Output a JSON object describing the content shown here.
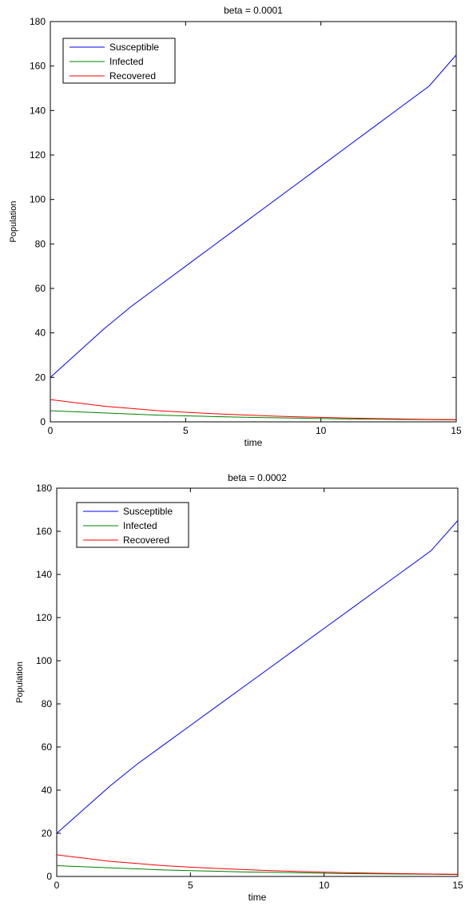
{
  "chart_data": [
    {
      "type": "line",
      "title": "beta = 0.0001",
      "xlabel": "time",
      "ylabel": "Population",
      "xlim": [
        0,
        15
      ],
      "ylim": [
        0,
        180
      ],
      "xticks": [
        0,
        5,
        10,
        15
      ],
      "yticks": [
        0,
        20,
        40,
        60,
        80,
        100,
        120,
        140,
        160,
        180
      ],
      "legend_position": "top-left",
      "grid": false,
      "x": [
        0,
        1,
        2,
        3,
        4,
        5,
        6,
        7,
        8,
        9,
        10,
        11,
        12,
        13,
        14,
        15
      ],
      "series": [
        {
          "name": "Susceptible",
          "color": "#0000ff",
          "values": [
            20,
            31,
            42,
            52,
            61,
            70,
            79,
            88,
            97,
            106,
            115,
            124,
            133,
            142,
            151,
            165
          ]
        },
        {
          "name": "Infected",
          "color": "#008000",
          "values": [
            5,
            4.5,
            4,
            3.5,
            3,
            2.7,
            2.4,
            2.1,
            1.9,
            1.7,
            1.5,
            1.3,
            1.2,
            1.1,
            1,
            0.9
          ]
        },
        {
          "name": "Recovered",
          "color": "#ff0000",
          "values": [
            10,
            8.5,
            7,
            6,
            5,
            4.3,
            3.7,
            3.2,
            2.7,
            2.3,
            2,
            1.7,
            1.5,
            1.3,
            1.1,
            1
          ]
        }
      ]
    },
    {
      "type": "line",
      "title": "beta = 0.0002",
      "xlabel": "time",
      "ylabel": "Population",
      "xlim": [
        0,
        15
      ],
      "ylim": [
        0,
        180
      ],
      "xticks": [
        0,
        5,
        10,
        15
      ],
      "yticks": [
        0,
        20,
        40,
        60,
        80,
        100,
        120,
        140,
        160,
        180
      ],
      "legend_position": "top-left",
      "grid": false,
      "x": [
        0,
        1,
        2,
        3,
        4,
        5,
        6,
        7,
        8,
        9,
        10,
        11,
        12,
        13,
        14,
        15
      ],
      "series": [
        {
          "name": "Susceptible",
          "color": "#0000ff",
          "values": [
            20,
            31,
            42,
            52,
            61,
            70,
            79,
            88,
            97,
            106,
            115,
            124,
            133,
            142,
            151,
            165
          ]
        },
        {
          "name": "Infected",
          "color": "#008000",
          "values": [
            5,
            4.5,
            4,
            3.5,
            3,
            2.7,
            2.4,
            2.1,
            1.9,
            1.7,
            1.5,
            1.3,
            1.2,
            1.1,
            1,
            0.9
          ]
        },
        {
          "name": "Recovered",
          "color": "#ff0000",
          "values": [
            10,
            8.5,
            7,
            6,
            5,
            4.3,
            3.7,
            3.2,
            2.7,
            2.3,
            2,
            1.7,
            1.5,
            1.3,
            1.1,
            1
          ]
        }
      ]
    }
  ]
}
